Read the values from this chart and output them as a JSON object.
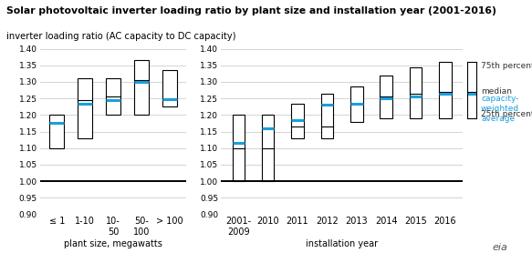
{
  "title": "Solar photovoltaic inverter loading ratio by plant size and installation year (2001-2016)",
  "subtitle": "inverter loading ratio (AC capacity to DC capacity)",
  "left_xlabel": "plant size, megawatts",
  "right_xlabel": "installation year",
  "left_categories": [
    "≤ 1",
    "1-10",
    "10-\n50",
    "50-\n100",
    "> 100"
  ],
  "right_categories": [
    "2001-\n2009",
    "2010",
    "2011",
    "2012",
    "2013",
    "2014",
    "2015",
    "2016"
  ],
  "left_data": [
    {
      "q25": 1.1,
      "median": 1.175,
      "cwa": 1.175,
      "q75": 1.2
    },
    {
      "q25": 1.13,
      "median": 1.245,
      "cwa": 1.235,
      "q75": 1.31
    },
    {
      "q25": 1.2,
      "median": 1.255,
      "cwa": 1.245,
      "q75": 1.31
    },
    {
      "q25": 1.2,
      "median": 1.305,
      "cwa": 1.3,
      "q75": 1.365
    },
    {
      "q25": 1.225,
      "median": 1.25,
      "cwa": 1.248,
      "q75": 1.335
    }
  ],
  "right_data": [
    {
      "q25": 1.0,
      "median": 1.1,
      "cwa": 1.115,
      "q75": 1.2
    },
    {
      "q25": 1.0,
      "median": 1.1,
      "cwa": 1.16,
      "q75": 1.2
    },
    {
      "q25": 1.13,
      "median": 1.165,
      "cwa": 1.185,
      "q75": 1.235
    },
    {
      "q25": 1.13,
      "median": 1.165,
      "cwa": 1.23,
      "q75": 1.265
    },
    {
      "q25": 1.18,
      "median": 1.235,
      "cwa": 1.235,
      "q75": 1.285
    },
    {
      "q25": 1.19,
      "median": 1.255,
      "cwa": 1.25,
      "q75": 1.32
    },
    {
      "q25": 1.19,
      "median": 1.265,
      "cwa": 1.255,
      "q75": 1.345
    },
    {
      "q25": 1.19,
      "median": 1.27,
      "cwa": 1.265,
      "q75": 1.36
    }
  ],
  "ylim": [
    0.9,
    1.42
  ],
  "yticks": [
    0.9,
    0.95,
    1.0,
    1.05,
    1.1,
    1.15,
    1.2,
    1.25,
    1.3,
    1.35,
    1.4
  ],
  "ytick_labels": [
    "0.90",
    "0.95",
    "1.00",
    "1.05",
    "1.10",
    "1.15",
    "1.20",
    "1.25",
    "1.30",
    "1.35",
    "1.40"
  ],
  "hline_y": 1.0,
  "box_color": "white",
  "box_edge_color": "black",
  "median_color": "black",
  "cwa_color": "#1a9fdc",
  "background_color": "white",
  "grid_color": "#cccccc",
  "title_fontsize": 7.8,
  "subtitle_fontsize": 7.2,
  "axis_label_fontsize": 7.0,
  "tick_fontsize": 6.5,
  "legend_fontsize": 6.5
}
